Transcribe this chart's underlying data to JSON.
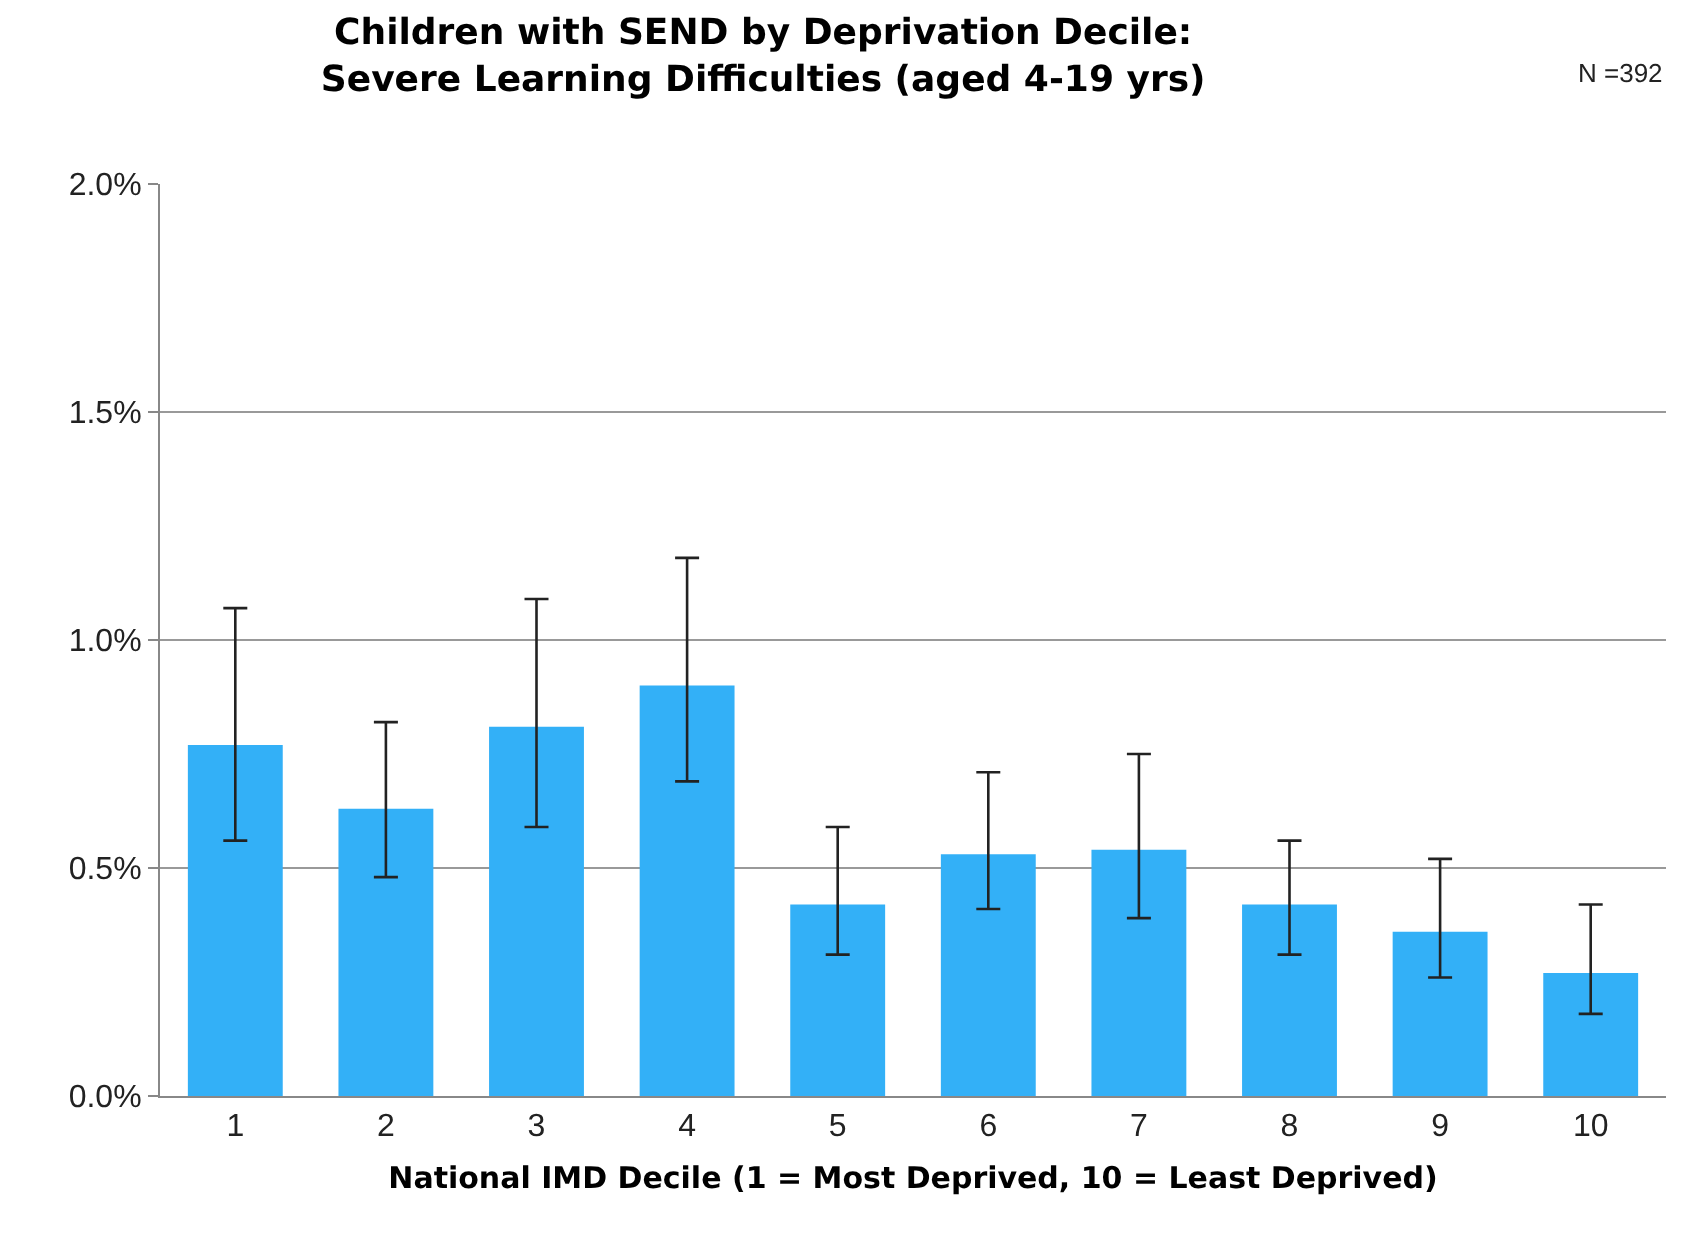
{
  "chart_data": {
    "type": "bar",
    "title": "Children with SEND by Deprivation Decile:\nSevere Learning Difficulties (aged 4-19 yrs)",
    "xlabel": "National IMD Decile (1 = Most Deprived, 10 = Least Deprived)",
    "categories": [
      "1",
      "2",
      "3",
      "4",
      "5",
      "6",
      "7",
      "8",
      "9",
      "10"
    ],
    "values": [
      0.77,
      0.63,
      0.81,
      0.9,
      0.42,
      0.53,
      0.54,
      0.42,
      0.36,
      0.27
    ],
    "errors": [
      [
        0.56,
        1.07
      ],
      [
        0.48,
        0.82
      ],
      [
        0.59,
        1.09
      ],
      [
        0.69,
        1.18
      ],
      [
        0.31,
        0.59
      ],
      [
        0.41,
        0.71
      ],
      [
        0.39,
        0.75
      ],
      [
        0.31,
        0.56
      ],
      [
        0.26,
        0.52
      ],
      [
        0.18,
        0.42
      ]
    ],
    "color": "#33b0f7",
    "ylim": [
      0,
      2
    ],
    "yticks": [
      {
        "value": 0,
        "label": "0.0%"
      },
      {
        "value": 0.5,
        "label": "0.5%"
      },
      {
        "value": 1,
        "label": "1.0%"
      },
      {
        "value": 1.5,
        "label": "1.5%"
      },
      {
        "value": 2,
        "label": "2.0%"
      }
    ],
    "grid": "y",
    "annotations": [
      "N =392"
    ]
  }
}
